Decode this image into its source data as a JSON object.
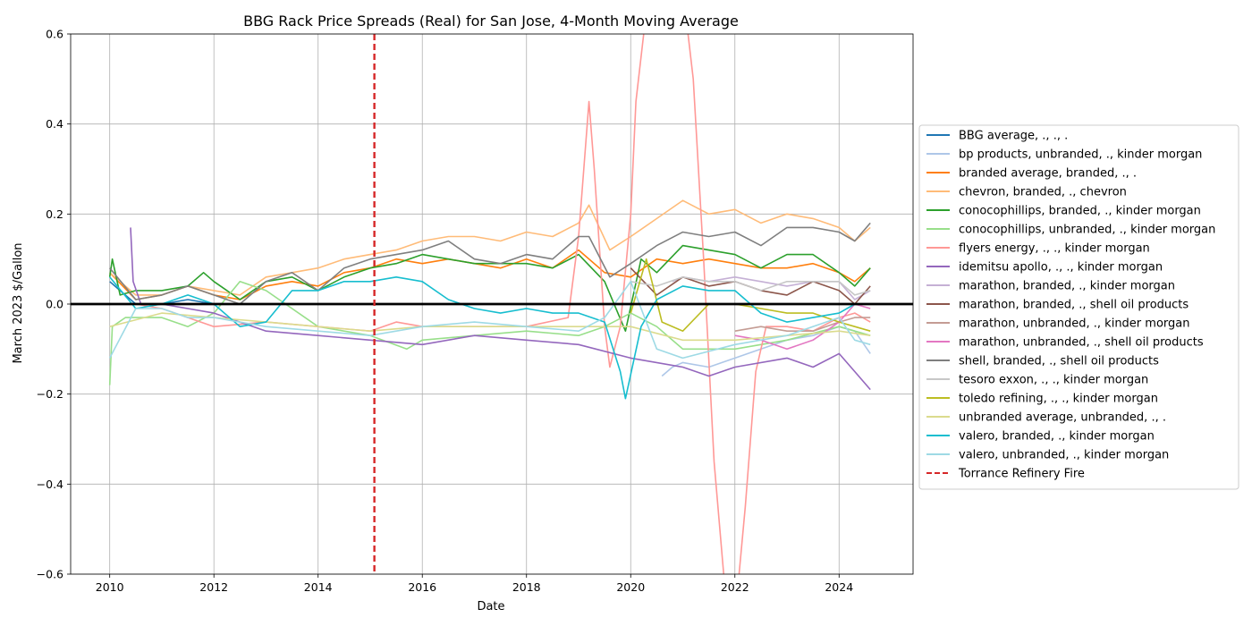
{
  "chart_data": {
    "type": "line",
    "title": "BBG Rack Price Spreads (Real) for San Jose, 4-Month Moving Average",
    "xlabel": "Date",
    "ylabel": "March 2023 $/Gallon",
    "xlim": [
      2009.25,
      2025.42
    ],
    "ylim": [
      -0.6,
      0.6
    ],
    "xticks": [
      2010,
      2012,
      2014,
      2016,
      2018,
      2020,
      2022,
      2024
    ],
    "yticks": [
      -0.6,
      -0.4,
      -0.2,
      0.0,
      0.2,
      0.4,
      0.6
    ],
    "xtick_labels": [
      "2010",
      "2012",
      "2014",
      "2016",
      "2018",
      "2020",
      "2022",
      "2024"
    ],
    "ytick_labels": [
      "−0.6",
      "−0.4",
      "−0.2",
      "0.0",
      "0.2",
      "0.4",
      "0.6"
    ],
    "grid": true,
    "legend_position": "outside-right",
    "zero_line": {
      "y": 0.0,
      "color": "#000000"
    },
    "event_line": {
      "name": "Torrance Refinery Fire",
      "x": 2015.08,
      "color": "#d62728",
      "style": "dashed"
    },
    "series": [
      {
        "name": "BBG average, ., ., .",
        "color": "#1f77b4",
        "x": [
          2010.0,
          2010.5,
          2011.0,
          2011.5,
          2012.0,
          2013.0,
          2014.0,
          2015.0,
          2016.0,
          2017.0,
          2018.0,
          2019.0,
          2020.0,
          2021.0,
          2022.0,
          2023.0,
          2024.0,
          2024.6
        ],
        "y": [
          0.05,
          0.0,
          0.0,
          0.01,
          0.0,
          0.0,
          0.0,
          0.0,
          0.0,
          0.0,
          0.0,
          0.0,
          0.0,
          0.0,
          0.0,
          0.0,
          0.0,
          0.0
        ]
      },
      {
        "name": "bp products, unbranded, ., kinder morgan",
        "color": "#aec7e8",
        "x": [
          2020.6,
          2020.8,
          2021.0,
          2021.5,
          2022.0,
          2022.5,
          2023.0,
          2023.5,
          2024.0,
          2024.3,
          2024.6
        ],
        "y": [
          -0.16,
          -0.14,
          -0.13,
          -0.14,
          -0.12,
          -0.1,
          -0.08,
          -0.07,
          -0.05,
          -0.06,
          -0.11
        ]
      },
      {
        "name": "branded average, branded, ., .",
        "color": "#ff7f0e",
        "x": [
          2010.0,
          2010.5,
          2011.0,
          2011.5,
          2012.0,
          2012.5,
          2013.0,
          2013.5,
          2014.0,
          2014.5,
          2015.0,
          2015.5,
          2016.0,
          2016.5,
          2017.0,
          2017.5,
          2018.0,
          2018.5,
          2019.0,
          2019.5,
          2020.0,
          2020.5,
          2021.0,
          2021.5,
          2022.0,
          2022.5,
          2023.0,
          2023.5,
          2024.0,
          2024.3,
          2024.6
        ],
        "y": [
          0.07,
          0.01,
          0.02,
          0.04,
          0.02,
          0.01,
          0.04,
          0.05,
          0.04,
          0.07,
          0.08,
          0.1,
          0.09,
          0.1,
          0.09,
          0.08,
          0.1,
          0.08,
          0.12,
          0.07,
          0.06,
          0.1,
          0.09,
          0.1,
          0.09,
          0.08,
          0.08,
          0.09,
          0.07,
          0.05,
          0.08
        ]
      },
      {
        "name": "chevron, branded, ., chevron",
        "color": "#ffbb78",
        "x": [
          2010.0,
          2010.5,
          2011.0,
          2011.5,
          2012.0,
          2012.5,
          2013.0,
          2013.5,
          2014.0,
          2014.5,
          2015.0,
          2015.5,
          2016.0,
          2016.5,
          2017.0,
          2017.5,
          2018.0,
          2018.5,
          2019.0,
          2019.2,
          2019.6,
          2020.0,
          2020.5,
          2021.0,
          2021.5,
          2022.0,
          2022.5,
          2023.0,
          2023.5,
          2024.0,
          2024.3,
          2024.6
        ],
        "y": [
          0.07,
          0.02,
          0.02,
          0.04,
          0.03,
          0.02,
          0.06,
          0.07,
          0.08,
          0.1,
          0.11,
          0.12,
          0.14,
          0.15,
          0.15,
          0.14,
          0.16,
          0.15,
          0.18,
          0.22,
          0.12,
          0.15,
          0.19,
          0.23,
          0.2,
          0.21,
          0.18,
          0.2,
          0.19,
          0.17,
          0.14,
          0.17
        ]
      },
      {
        "name": "conocophillips, branded, ., kinder morgan",
        "color": "#2ca02c",
        "x": [
          2010.0,
          2010.05,
          2010.2,
          2010.5,
          2011.0,
          2011.5,
          2011.8,
          2012.0,
          2012.5,
          2013.0,
          2013.5,
          2014.0,
          2014.5,
          2015.0,
          2015.5,
          2016.0,
          2016.5,
          2017.0,
          2017.5,
          2018.0,
          2018.5,
          2019.0,
          2019.5,
          2019.9,
          2020.2,
          2020.5,
          2021.0,
          2021.5,
          2022.0,
          2022.5,
          2023.0,
          2023.5,
          2024.0,
          2024.3,
          2024.6
        ],
        "y": [
          0.06,
          0.1,
          0.02,
          0.03,
          0.03,
          0.04,
          0.07,
          0.05,
          0.01,
          0.05,
          0.06,
          0.03,
          0.06,
          0.08,
          0.09,
          0.11,
          0.1,
          0.09,
          0.09,
          0.09,
          0.08,
          0.11,
          0.05,
          -0.06,
          0.1,
          0.07,
          0.13,
          0.12,
          0.11,
          0.08,
          0.11,
          0.11,
          0.07,
          0.04,
          0.08
        ]
      },
      {
        "name": "conocophillips, unbranded, ., kinder morgan",
        "color": "#98df8a",
        "x": [
          2010.0,
          2010.05,
          2010.3,
          2011.0,
          2011.5,
          2012.0,
          2012.5,
          2013.0,
          2014.0,
          2015.0,
          2015.7,
          2016.0,
          2017.0,
          2018.0,
          2019.0,
          2019.5,
          2020.0,
          2020.5,
          2021.0,
          2022.0,
          2023.0,
          2024.0,
          2024.6
        ],
        "y": [
          -0.18,
          -0.05,
          -0.03,
          -0.03,
          -0.05,
          -0.02,
          0.05,
          0.03,
          -0.05,
          -0.07,
          -0.1,
          -0.08,
          -0.07,
          -0.06,
          -0.07,
          -0.05,
          -0.02,
          -0.05,
          -0.1,
          -0.1,
          -0.08,
          -0.05,
          -0.07
        ]
      },
      {
        "name": "flyers energy, ., ., kinder morgan",
        "color": "#ff9896",
        "x": [
          2010.0,
          2010.5,
          2011.0,
          2011.5,
          2012.0,
          2013.0,
          2014.0,
          2015.0,
          2015.5,
          2016.0,
          2017.0,
          2018.0,
          2018.8,
          2019.0,
          2019.1,
          2019.2,
          2019.3,
          2019.5,
          2019.6,
          2019.8,
          2020.0,
          2020.1,
          2020.3,
          2020.5,
          2020.8,
          2021.0,
          2021.2,
          2021.4,
          2021.6,
          2021.8,
          2022.0,
          2022.2,
          2022.4,
          2022.6,
          2022.8,
          2023.0,
          2023.5,
          2024.0,
          2024.3,
          2024.6
        ],
        "y": [
          0.0,
          0.0,
          -0.01,
          -0.03,
          -0.05,
          -0.04,
          -0.05,
          -0.06,
          -0.04,
          -0.05,
          -0.05,
          -0.05,
          -0.03,
          0.15,
          0.3,
          0.45,
          0.3,
          -0.05,
          -0.14,
          -0.05,
          0.2,
          0.45,
          0.65,
          0.8,
          0.8,
          0.7,
          0.5,
          0.1,
          -0.35,
          -0.62,
          -0.7,
          -0.45,
          -0.15,
          -0.05,
          -0.05,
          -0.05,
          -0.06,
          -0.03,
          -0.02,
          -0.04
        ]
      },
      {
        "name": "idemitsu apollo, ., ., kinder morgan",
        "color": "#9467bd",
        "x": [
          2010.4,
          2010.45,
          2010.6,
          2011.0,
          2012.0,
          2013.0,
          2014.0,
          2015.0,
          2016.0,
          2017.0,
          2018.0,
          2019.0,
          2020.0,
          2021.0,
          2021.5,
          2022.0,
          2023.0,
          2023.5,
          2024.0,
          2024.3,
          2024.6
        ],
        "y": [
          0.17,
          0.05,
          0.0,
          0.0,
          -0.02,
          -0.06,
          -0.07,
          -0.08,
          -0.09,
          -0.07,
          -0.08,
          -0.09,
          -0.12,
          -0.14,
          -0.16,
          -0.14,
          -0.12,
          -0.14,
          -0.11,
          -0.15,
          -0.19
        ]
      },
      {
        "name": "marathon, branded, ., kinder morgan",
        "color": "#c5b0d5",
        "x": [
          2020.8,
          2021.0,
          2021.5,
          2022.0,
          2022.5,
          2023.0,
          2023.5,
          2024.0,
          2024.3,
          2024.6
        ],
        "y": [
          0.05,
          0.06,
          0.05,
          0.06,
          0.05,
          0.04,
          0.05,
          0.05,
          0.01,
          0.03
        ]
      },
      {
        "name": "marathon, branded, ., shell oil products",
        "color": "#8c564b",
        "x": [
          2020.0,
          2020.5,
          2021.0,
          2021.5,
          2022.0,
          2022.5,
          2023.0,
          2023.5,
          2024.0,
          2024.3,
          2024.6
        ],
        "y": [
          0.08,
          0.02,
          0.06,
          0.04,
          0.05,
          0.03,
          0.02,
          0.05,
          0.03,
          0.0,
          0.04
        ]
      },
      {
        "name": "marathon, unbranded, ., kinder morgan",
        "color": "#c49c94",
        "x": [
          2022.0,
          2022.5,
          2023.0,
          2023.5,
          2024.0,
          2024.3,
          2024.6
        ],
        "y": [
          -0.06,
          -0.05,
          -0.06,
          -0.06,
          -0.04,
          -0.03,
          -0.03
        ]
      },
      {
        "name": "marathon, unbranded, ., shell oil products",
        "color": "#e377c2",
        "x": [
          2022.0,
          2022.5,
          2023.0,
          2023.5,
          2024.0,
          2024.3,
          2024.6
        ],
        "y": [
          -0.07,
          -0.08,
          -0.1,
          -0.08,
          -0.04,
          0.0,
          -0.01
        ]
      },
      {
        "name": "shell, branded, ., shell oil products",
        "color": "#7f7f7f",
        "x": [
          2010.0,
          2010.5,
          2011.0,
          2011.5,
          2012.0,
          2012.5,
          2013.0,
          2013.5,
          2014.0,
          2014.5,
          2015.0,
          2015.5,
          2016.0,
          2016.5,
          2017.0,
          2017.5,
          2018.0,
          2018.5,
          2019.0,
          2019.2,
          2019.6,
          2020.0,
          2020.5,
          2021.0,
          2021.5,
          2022.0,
          2022.5,
          2023.0,
          2023.5,
          2024.0,
          2024.3,
          2024.6
        ],
        "y": [
          0.08,
          0.01,
          0.02,
          0.04,
          0.02,
          0.0,
          0.05,
          0.07,
          0.03,
          0.08,
          0.1,
          0.11,
          0.12,
          0.14,
          0.1,
          0.09,
          0.11,
          0.1,
          0.15,
          0.15,
          0.06,
          0.09,
          0.13,
          0.16,
          0.15,
          0.16,
          0.13,
          0.17,
          0.17,
          0.16,
          0.14,
          0.18
        ]
      },
      {
        "name": "tesoro exxon, ., ., kinder morgan",
        "color": "#c7c7c7",
        "x": [
          2020.0,
          2020.5,
          2021.0,
          2021.5,
          2022.0,
          2022.5,
          2023.0,
          2023.5,
          2024.0,
          2024.3,
          2024.6
        ],
        "y": [
          0.05,
          0.04,
          0.06,
          0.05,
          0.05,
          0.03,
          0.05,
          0.05,
          0.05,
          0.02,
          0.03
        ]
      },
      {
        "name": "toledo refining, ., ., kinder morgan",
        "color": "#bcbd22",
        "x": [
          2020.0,
          2020.3,
          2020.6,
          2021.0,
          2021.5,
          2022.0,
          2022.5,
          2023.0,
          2023.5,
          2024.0,
          2024.3,
          2024.6
        ],
        "y": [
          -0.02,
          0.1,
          -0.04,
          -0.06,
          0.0,
          0.0,
          -0.01,
          -0.02,
          -0.02,
          -0.04,
          -0.05,
          -0.06
        ]
      },
      {
        "name": "unbranded average, unbranded, ., .",
        "color": "#dbdb8d",
        "x": [
          2010.0,
          2011.0,
          2012.0,
          2013.0,
          2014.0,
          2015.0,
          2016.0,
          2017.0,
          2018.0,
          2019.0,
          2020.0,
          2021.0,
          2022.0,
          2023.0,
          2024.0,
          2024.6
        ],
        "y": [
          -0.05,
          -0.02,
          -0.03,
          -0.04,
          -0.05,
          -0.06,
          -0.05,
          -0.05,
          -0.05,
          -0.05,
          -0.05,
          -0.08,
          -0.08,
          -0.07,
          -0.06,
          -0.07
        ]
      },
      {
        "name": "valero, branded, ., kinder morgan",
        "color": "#17becf",
        "x": [
          2010.0,
          2010.5,
          2011.0,
          2011.5,
          2012.0,
          2012.5,
          2013.0,
          2013.5,
          2014.0,
          2014.5,
          2015.0,
          2015.5,
          2016.0,
          2016.5,
          2017.0,
          2017.5,
          2018.0,
          2018.5,
          2019.0,
          2019.5,
          2019.8,
          2019.9,
          2020.2,
          2020.5,
          2021.0,
          2021.5,
          2022.0,
          2022.5,
          2023.0,
          2023.5,
          2024.0,
          2024.3,
          2024.6
        ],
        "y": [
          0.06,
          -0.01,
          0.0,
          0.02,
          0.0,
          -0.05,
          -0.04,
          0.03,
          0.03,
          0.05,
          0.05,
          0.06,
          0.05,
          0.01,
          -0.01,
          -0.02,
          -0.01,
          -0.02,
          -0.02,
          -0.04,
          -0.15,
          -0.21,
          -0.05,
          0.01,
          0.04,
          0.03,
          0.03,
          -0.02,
          -0.04,
          -0.03,
          -0.02,
          0.0,
          0.0
        ]
      },
      {
        "name": "valero, unbranded, ., kinder morgan",
        "color": "#9edae5",
        "x": [
          2010.0,
          2010.5,
          2011.0,
          2011.5,
          2012.0,
          2013.0,
          2014.0,
          2015.0,
          2016.0,
          2017.0,
          2018.0,
          2019.0,
          2019.5,
          2020.0,
          2020.5,
          2021.0,
          2022.0,
          2023.0,
          2024.0,
          2024.3,
          2024.6
        ],
        "y": [
          -0.12,
          -0.01,
          -0.01,
          -0.03,
          -0.03,
          -0.05,
          -0.06,
          -0.07,
          -0.05,
          -0.04,
          -0.05,
          -0.06,
          -0.03,
          0.05,
          -0.1,
          -0.12,
          -0.09,
          -0.07,
          -0.03,
          -0.08,
          -0.09
        ]
      }
    ]
  }
}
